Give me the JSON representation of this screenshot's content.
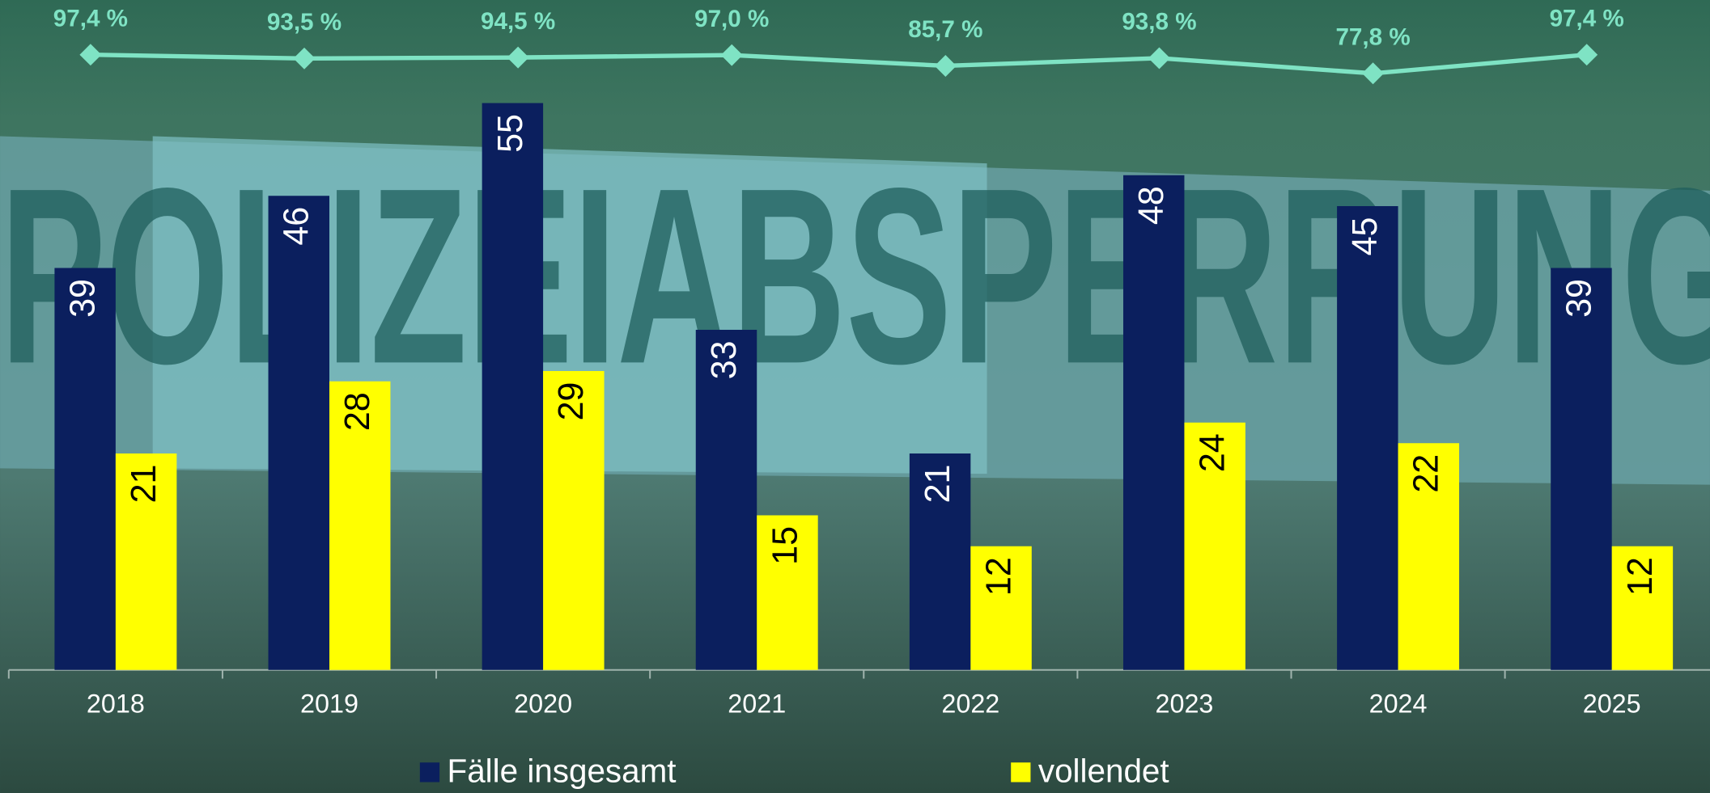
{
  "chart_data": {
    "type": "bar",
    "background_text": "POLIZEIABSPERRUNG",
    "categories": [
      "2018",
      "2019",
      "2020",
      "2021",
      "2022",
      "2023",
      "2024",
      "2025"
    ],
    "series": [
      {
        "name": "Fälle insgesamt",
        "color": "#0b1f5e",
        "label_color": "#ffffff",
        "values": [
          39,
          46,
          55,
          33,
          21,
          48,
          45,
          39
        ]
      },
      {
        "name": "vollendet",
        "color": "#ffff00",
        "label_color": "#000000",
        "values": [
          21,
          28,
          29,
          15,
          12,
          24,
          22,
          12
        ]
      },
      {
        "type": "line",
        "axis": "y2",
        "color": "#7fe3c4",
        "values": [
          97.4,
          93.5,
          94.5,
          97.0,
          85.7,
          93.8,
          77.8,
          97.4
        ],
        "value_labels": [
          "97,4 %",
          "93,5 %",
          "94,5 %",
          "97,0 %",
          "85,7 %",
          "93,8 %",
          "77,8 %",
          "97,4 %"
        ]
      }
    ],
    "ylim": [
      0,
      65
    ],
    "y2lim": [
      -550,
      155
    ],
    "legend": "bottom"
  }
}
